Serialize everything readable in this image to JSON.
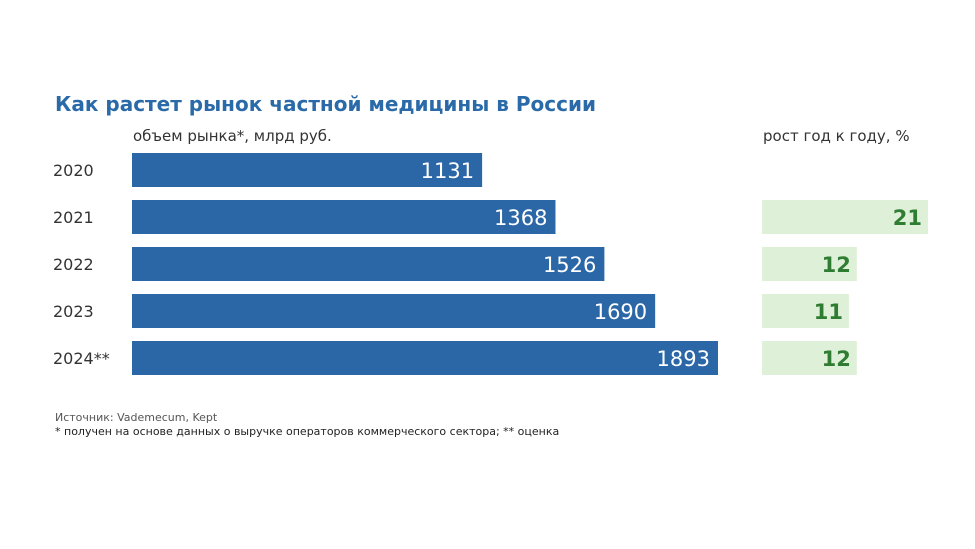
{
  "header": {
    "title": "Как растет рынок частной медицины в России",
    "left_subtitle": "объем рынка*, млрд руб.",
    "right_subtitle": "рост год к году, %"
  },
  "footer": {
    "source": "Источник: Vademecum, Kept",
    "note": "* получен на основе данных о выручке операторов коммерческого сектора; ** оценка"
  },
  "colors": {
    "bar": "#2b67a6",
    "growth_bg": "#dff0d8",
    "growth_text": "#2e7d32",
    "title": "#2a6aa8"
  },
  "chart_data": [
    {
      "type": "bar",
      "orientation": "horizontal",
      "categories": [
        "2020",
        "2021",
        "2022",
        "2023",
        "2024**"
      ],
      "values": [
        1131,
        1368,
        1526,
        1690,
        1893
      ],
      "value_labels": [
        "1131",
        "1368",
        "1526",
        "1690",
        "1893"
      ],
      "title": "Как растет рынок частной медицины в России",
      "xlabel": "объем рынка*, млрд руб.",
      "ylabel": "",
      "xlim": [
        0,
        1893
      ]
    },
    {
      "type": "bar",
      "orientation": "horizontal",
      "categories": [
        "2021",
        "2022",
        "2023",
        "2024**"
      ],
      "values": [
        21,
        12,
        11,
        12
      ],
      "value_labels": [
        "21",
        "12",
        "11",
        "12"
      ],
      "title": "",
      "xlabel": "рост год к году, %",
      "ylabel": "",
      "xlim": [
        0,
        21
      ]
    }
  ]
}
